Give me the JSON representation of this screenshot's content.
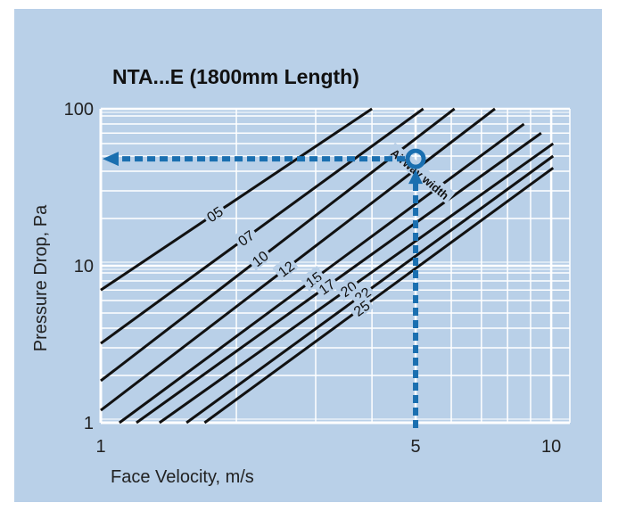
{
  "colors": {
    "background": "#b9d0e8",
    "grid": "#ffffff",
    "lines": "#111111",
    "highlight": "#1a6fb0"
  },
  "chart_data": {
    "type": "line",
    "title": "NTA...E (1800mm Length)",
    "xlabel": "Face Velocity, m/s",
    "ylabel": "Pressure Drop, Pa",
    "xscale": "log",
    "yscale": "log",
    "xlim": [
      1,
      11
    ],
    "ylim": [
      1,
      100
    ],
    "grid": true,
    "x_ticks": [
      1,
      5,
      10
    ],
    "y_ticks": [
      1,
      10,
      100
    ],
    "curve_annotation": "Airway width",
    "series": [
      {
        "name": "05",
        "x": [
          1,
          4.0
        ],
        "y": [
          7.0,
          100
        ]
      },
      {
        "name": "07",
        "x": [
          1,
          5.2
        ],
        "y": [
          3.2,
          100
        ]
      },
      {
        "name": "10",
        "x": [
          1,
          6.1
        ],
        "y": [
          1.85,
          100
        ]
      },
      {
        "name": "12",
        "x": [
          1,
          7.5
        ],
        "y": [
          1.2,
          100
        ]
      },
      {
        "name": "15",
        "x": [
          1.1,
          8.7
        ],
        "y": [
          1,
          80
        ]
      },
      {
        "name": "17",
        "x": [
          1.2,
          9.5
        ],
        "y": [
          1,
          70
        ]
      },
      {
        "name": "20",
        "x": [
          1.35,
          10.1
        ],
        "y": [
          1,
          60
        ]
      },
      {
        "name": "22",
        "x": [
          1.55,
          10.1
        ],
        "y": [
          1,
          50
        ]
      },
      {
        "name": "25",
        "x": [
          1.7,
          10.1
        ],
        "y": [
          1,
          42
        ]
      }
    ],
    "example": {
      "x": 5,
      "y": 48
    }
  }
}
